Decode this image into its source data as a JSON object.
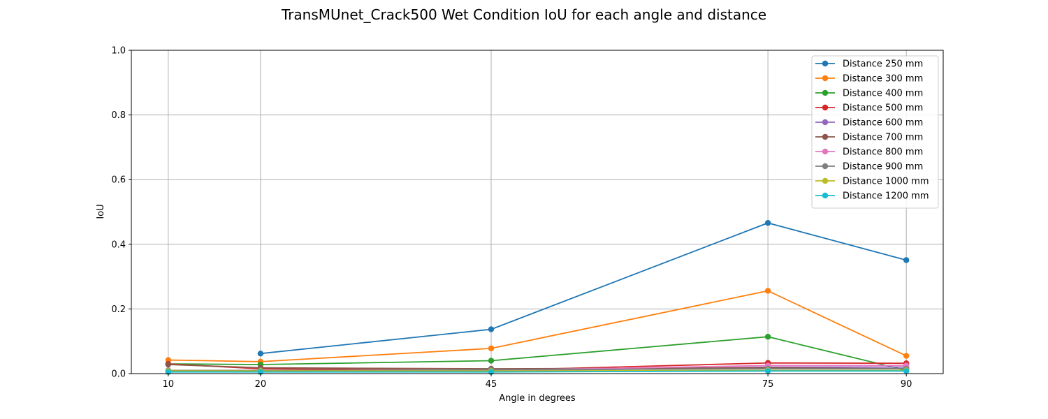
{
  "chart_data": {
    "type": "line",
    "title": "TransMUnet_Crack500 Wet Condition IoU for each angle and distance",
    "xlabel": "Angle in degrees",
    "ylabel": "IoU",
    "x": [
      10,
      20,
      45,
      75,
      90
    ],
    "x_ticks": [
      "10",
      "20",
      "45",
      "75",
      "90"
    ],
    "y_ticks": [
      "0.0",
      "0.2",
      "0.4",
      "0.6",
      "0.8",
      "1.0"
    ],
    "xlim": [
      6,
      94
    ],
    "ylim": [
      0,
      1
    ],
    "grid": true,
    "legend_position": "top-right",
    "series": [
      {
        "name": "Distance 250 mm",
        "color": "#1f77b4",
        "values": [
          null,
          0.062,
          0.137,
          0.466,
          0.351
        ]
      },
      {
        "name": "Distance 300 mm",
        "color": "#ff7f0e",
        "values": [
          0.042,
          0.037,
          0.078,
          0.256,
          0.055
        ]
      },
      {
        "name": "Distance 400 mm",
        "color": "#2ca02c",
        "values": [
          0.03,
          0.028,
          0.04,
          0.114,
          0.01
        ]
      },
      {
        "name": "Distance 500 mm",
        "color": "#d62728",
        "values": [
          0.03,
          0.015,
          0.01,
          0.033,
          0.032
        ]
      },
      {
        "name": "Distance 600 mm",
        "color": "#9467bd",
        "values": [
          0.005,
          0.008,
          0.008,
          0.02,
          0.02
        ]
      },
      {
        "name": "Distance 700 mm",
        "color": "#8c564b",
        "values": [
          0.028,
          0.018,
          0.015,
          0.018,
          0.015
        ]
      },
      {
        "name": "Distance 800 mm",
        "color": "#e377c2",
        "values": [
          0.008,
          0.01,
          0.01,
          0.025,
          0.025
        ]
      },
      {
        "name": "Distance 900 mm",
        "color": "#7f7f7f",
        "values": [
          0.01,
          0.01,
          0.012,
          0.015,
          0.015
        ]
      },
      {
        "name": "Distance 1000 mm",
        "color": "#bcbd22",
        "values": [
          0.008,
          0.008,
          0.008,
          0.01,
          0.01
        ]
      },
      {
        "name": "Distance 1200 mm",
        "color": "#17becf",
        "values": [
          0.005,
          0.005,
          0.005,
          0.008,
          0.008
        ]
      }
    ]
  }
}
